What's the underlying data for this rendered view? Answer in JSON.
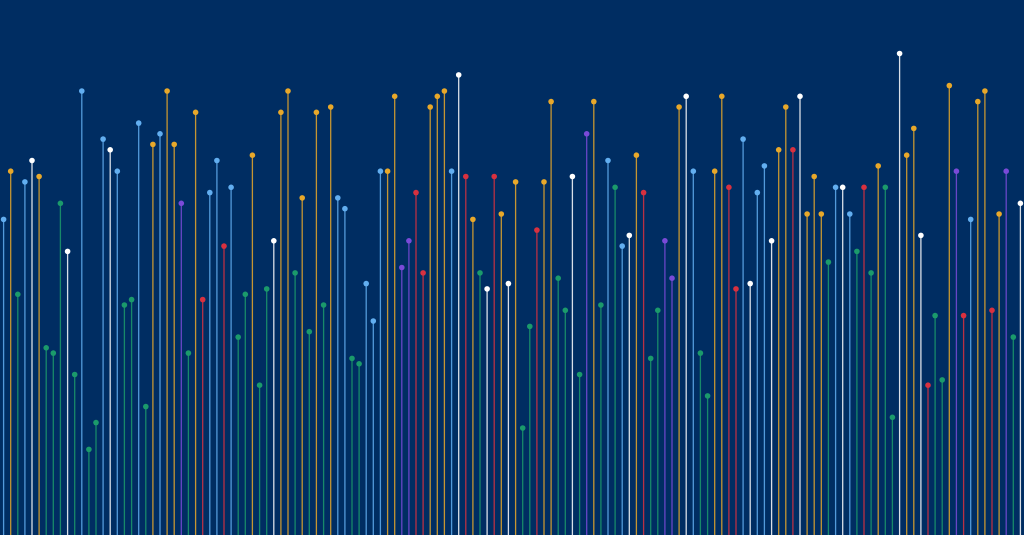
{
  "background": "#002d62",
  "palette": {
    "yellow": "#e8a82a",
    "light_blue": "#62aef0",
    "green": "#1b9a6b",
    "red": "#d8313f",
    "purple": "#7a4ad8",
    "white": "#ffffff"
  },
  "stems": [
    {
      "color": "light_blue",
      "level": 0.59
    },
    {
      "color": "yellow",
      "level": 0.68
    },
    {
      "color": "green",
      "level": 0.45
    },
    {
      "color": "light_blue",
      "level": 0.66
    },
    {
      "color": "white",
      "level": 0.7
    },
    {
      "color": "yellow",
      "level": 0.67
    },
    {
      "color": "green",
      "level": 0.35
    },
    {
      "color": "green",
      "level": 0.34
    },
    {
      "color": "green",
      "level": 0.62
    },
    {
      "color": "white",
      "level": 0.53
    },
    {
      "color": "green",
      "level": 0.3
    },
    {
      "color": "light_blue",
      "level": 0.83
    },
    {
      "color": "green",
      "level": 0.16
    },
    {
      "color": "green",
      "level": 0.21
    },
    {
      "color": "light_blue",
      "level": 0.74
    },
    {
      "color": "white",
      "level": 0.72
    },
    {
      "color": "light_blue",
      "level": 0.68
    },
    {
      "color": "green",
      "level": 0.43
    },
    {
      "color": "green",
      "level": 0.44
    },
    {
      "color": "light_blue",
      "level": 0.77
    },
    {
      "color": "green",
      "level": 0.24
    },
    {
      "color": "yellow",
      "level": 0.73
    },
    {
      "color": "light_blue",
      "level": 0.75
    },
    {
      "color": "yellow",
      "level": 0.83
    },
    {
      "color": "yellow",
      "level": 0.73
    },
    {
      "color": "purple",
      "level": 0.62
    },
    {
      "color": "green",
      "level": 0.34
    },
    {
      "color": "yellow",
      "level": 0.79
    },
    {
      "color": "red",
      "level": 0.44
    },
    {
      "color": "light_blue",
      "level": 0.64
    },
    {
      "color": "light_blue",
      "level": 0.7
    },
    {
      "color": "red",
      "level": 0.54
    },
    {
      "color": "light_blue",
      "level": 0.65
    },
    {
      "color": "green",
      "level": 0.37
    },
    {
      "color": "green",
      "level": 0.45
    },
    {
      "color": "yellow",
      "level": 0.71
    },
    {
      "color": "green",
      "level": 0.28
    },
    {
      "color": "green",
      "level": 0.46
    },
    {
      "color": "white",
      "level": 0.55
    },
    {
      "color": "yellow",
      "level": 0.79
    },
    {
      "color": "yellow",
      "level": 0.83
    },
    {
      "color": "green",
      "level": 0.49
    },
    {
      "color": "yellow",
      "level": 0.63
    },
    {
      "color": "green",
      "level": 0.38
    },
    {
      "color": "yellow",
      "level": 0.79
    },
    {
      "color": "green",
      "level": 0.43
    },
    {
      "color": "yellow",
      "level": 0.8
    },
    {
      "color": "light_blue",
      "level": 0.63
    },
    {
      "color": "light_blue",
      "level": 0.61
    },
    {
      "color": "green",
      "level": 0.33
    },
    {
      "color": "green",
      "level": 0.32
    },
    {
      "color": "light_blue",
      "level": 0.47
    },
    {
      "color": "light_blue",
      "level": 0.4
    },
    {
      "color": "light_blue",
      "level": 0.68
    },
    {
      "color": "yellow",
      "level": 0.68
    },
    {
      "color": "yellow",
      "level": 0.82
    },
    {
      "color": "purple",
      "level": 0.5
    },
    {
      "color": "purple",
      "level": 0.55
    },
    {
      "color": "red",
      "level": 0.64
    },
    {
      "color": "red",
      "level": 0.49
    },
    {
      "color": "yellow",
      "level": 0.8
    },
    {
      "color": "yellow",
      "level": 0.82
    },
    {
      "color": "yellow",
      "level": 0.83
    },
    {
      "color": "light_blue",
      "level": 0.68
    },
    {
      "color": "white",
      "level": 0.86
    },
    {
      "color": "red",
      "level": 0.67
    },
    {
      "color": "yellow",
      "level": 0.59
    },
    {
      "color": "green",
      "level": 0.49
    },
    {
      "color": "white",
      "level": 0.46
    },
    {
      "color": "red",
      "level": 0.67
    },
    {
      "color": "yellow",
      "level": 0.6
    },
    {
      "color": "white",
      "level": 0.47
    },
    {
      "color": "yellow",
      "level": 0.66
    },
    {
      "color": "green",
      "level": 0.2
    },
    {
      "color": "green",
      "level": 0.39
    },
    {
      "color": "red",
      "level": 0.57
    },
    {
      "color": "yellow",
      "level": 0.66
    },
    {
      "color": "yellow",
      "level": 0.81
    },
    {
      "color": "green",
      "level": 0.48
    },
    {
      "color": "green",
      "level": 0.42
    },
    {
      "color": "white",
      "level": 0.67
    },
    {
      "color": "green",
      "level": 0.3
    },
    {
      "color": "purple",
      "level": 0.75
    },
    {
      "color": "yellow",
      "level": 0.81
    },
    {
      "color": "green",
      "level": 0.43
    },
    {
      "color": "light_blue",
      "level": 0.7
    },
    {
      "color": "green",
      "level": 0.65
    },
    {
      "color": "light_blue",
      "level": 0.54
    },
    {
      "color": "white",
      "level": 0.56
    },
    {
      "color": "yellow",
      "level": 0.71
    },
    {
      "color": "red",
      "level": 0.64
    },
    {
      "color": "green",
      "level": 0.33
    },
    {
      "color": "green",
      "level": 0.42
    },
    {
      "color": "purple",
      "level": 0.55
    },
    {
      "color": "purple",
      "level": 0.48
    },
    {
      "color": "yellow",
      "level": 0.8
    },
    {
      "color": "white",
      "level": 0.82
    },
    {
      "color": "light_blue",
      "level": 0.68
    },
    {
      "color": "green",
      "level": 0.34
    },
    {
      "color": "green",
      "level": 0.26
    },
    {
      "color": "yellow",
      "level": 0.68
    },
    {
      "color": "yellow",
      "level": 0.82
    },
    {
      "color": "red",
      "level": 0.65
    },
    {
      "color": "red",
      "level": 0.46
    },
    {
      "color": "light_blue",
      "level": 0.74
    },
    {
      "color": "white",
      "level": 0.47
    },
    {
      "color": "light_blue",
      "level": 0.64
    },
    {
      "color": "light_blue",
      "level": 0.69
    },
    {
      "color": "white",
      "level": 0.55
    },
    {
      "color": "yellow",
      "level": 0.72
    },
    {
      "color": "yellow",
      "level": 0.8
    },
    {
      "color": "red",
      "level": 0.72
    },
    {
      "color": "white",
      "level": 0.82
    },
    {
      "color": "yellow",
      "level": 0.6
    },
    {
      "color": "yellow",
      "level": 0.67
    },
    {
      "color": "yellow",
      "level": 0.6
    },
    {
      "color": "green",
      "level": 0.51
    },
    {
      "color": "light_blue",
      "level": 0.65
    },
    {
      "color": "white",
      "level": 0.65
    },
    {
      "color": "light_blue",
      "level": 0.6
    },
    {
      "color": "green",
      "level": 0.53
    },
    {
      "color": "red",
      "level": 0.65
    },
    {
      "color": "green",
      "level": 0.49
    },
    {
      "color": "yellow",
      "level": 0.69
    },
    {
      "color": "green",
      "level": 0.65
    },
    {
      "color": "green",
      "level": 0.22
    },
    {
      "color": "white",
      "level": 0.9
    },
    {
      "color": "yellow",
      "level": 0.71
    },
    {
      "color": "yellow",
      "level": 0.76
    },
    {
      "color": "white",
      "level": 0.56
    },
    {
      "color": "red",
      "level": 0.28
    },
    {
      "color": "green",
      "level": 0.41
    },
    {
      "color": "green",
      "level": 0.29
    },
    {
      "color": "yellow",
      "level": 0.84
    },
    {
      "color": "purple",
      "level": 0.68
    },
    {
      "color": "red",
      "level": 0.41
    },
    {
      "color": "light_blue",
      "level": 0.59
    },
    {
      "color": "yellow",
      "level": 0.81
    },
    {
      "color": "yellow",
      "level": 0.83
    },
    {
      "color": "red",
      "level": 0.42
    },
    {
      "color": "yellow",
      "level": 0.6
    },
    {
      "color": "purple",
      "level": 0.68
    },
    {
      "color": "green",
      "level": 0.37
    },
    {
      "color": "white",
      "level": 0.62
    }
  ]
}
